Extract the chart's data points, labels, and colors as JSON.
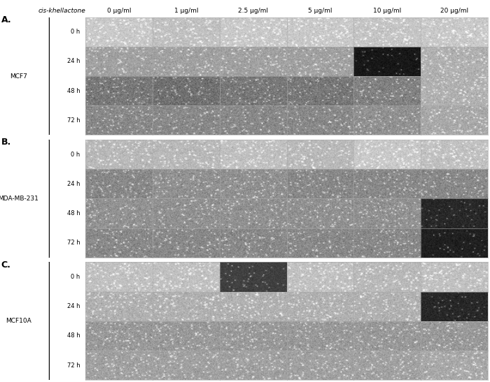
{
  "col_headers": [
    "0 μg/ml",
    "1 μg/ml",
    "2.5 μg/ml",
    "5 μg/ml",
    "10 μg/ml",
    "20 μg/ml"
  ],
  "row_headers": [
    "0 h",
    "24 h",
    "48 h",
    "72 h"
  ],
  "panel_labels": [
    "A.",
    "B.",
    "C."
  ],
  "cell_labels": [
    "MCF7",
    "MDA-MB-231",
    "MCF10A"
  ],
  "top_label": "cis-khellactone",
  "n_cols": 6,
  "n_rows": 4,
  "n_panels": 3,
  "bg_color": "#ffffff",
  "text_color": "#000000",
  "panel_bg_colors": [
    [
      [
        "#c8c8c8",
        "#c0c0c0",
        "#c8c8c8",
        "#c8c8c8",
        "#c4c4c4",
        "#c8c8c8"
      ],
      [
        "#a0a0a0",
        "#a0a0a0",
        "#a0a0a0",
        "#a0a0a0",
        "#181818",
        "#b0b0b0"
      ],
      [
        "#787878",
        "#707070",
        "#787878",
        "#787878",
        "#808080",
        "#b0b0b0"
      ],
      [
        "#888888",
        "#888888",
        "#888888",
        "#888888",
        "#909090",
        "#a8a8a8"
      ]
    ],
    [
      [
        "#b8b8b8",
        "#b8b8b8",
        "#c0c0c0",
        "#b8b8b8",
        "#c8c8c8",
        "#c0c0c0"
      ],
      [
        "#888888",
        "#909090",
        "#909090",
        "#888888",
        "#888888",
        "#888888"
      ],
      [
        "#909090",
        "#909090",
        "#909090",
        "#909090",
        "#909090",
        "#282828"
      ],
      [
        "#888888",
        "#888888",
        "#888888",
        "#888888",
        "#888888",
        "#202020"
      ]
    ],
    [
      [
        "#c0c0c0",
        "#c0c0c0",
        "#404040",
        "#c0c0c0",
        "#b8b8b8",
        "#c0c0c0"
      ],
      [
        "#b0b0b0",
        "#b0b0b0",
        "#b0b0b0",
        "#b0b0b0",
        "#b0b0b0",
        "#282828"
      ],
      [
        "#989898",
        "#989898",
        "#989898",
        "#989898",
        "#989898",
        "#989898"
      ],
      [
        "#a0a0a0",
        "#a0a0a0",
        "#a0a0a0",
        "#a0a0a0",
        "#a0a0a0",
        "#a8a8a8"
      ]
    ]
  ],
  "cell_noise": [
    [
      [
        0.07,
        0.07,
        0.07,
        0.07,
        0.07,
        0.07
      ],
      [
        0.08,
        0.08,
        0.08,
        0.08,
        0.05,
        0.08
      ],
      [
        0.1,
        0.1,
        0.1,
        0.1,
        0.1,
        0.08
      ],
      [
        0.09,
        0.09,
        0.09,
        0.09,
        0.09,
        0.08
      ]
    ],
    [
      [
        0.07,
        0.07,
        0.07,
        0.07,
        0.07,
        0.07
      ],
      [
        0.09,
        0.09,
        0.09,
        0.09,
        0.09,
        0.09
      ],
      [
        0.09,
        0.09,
        0.09,
        0.09,
        0.09,
        0.06
      ],
      [
        0.09,
        0.09,
        0.09,
        0.09,
        0.09,
        0.05
      ]
    ],
    [
      [
        0.07,
        0.07,
        0.05,
        0.07,
        0.07,
        0.07
      ],
      [
        0.08,
        0.08,
        0.08,
        0.08,
        0.08,
        0.06
      ],
      [
        0.09,
        0.09,
        0.09,
        0.09,
        0.09,
        0.09
      ],
      [
        0.08,
        0.08,
        0.08,
        0.08,
        0.08,
        0.08
      ]
    ]
  ]
}
